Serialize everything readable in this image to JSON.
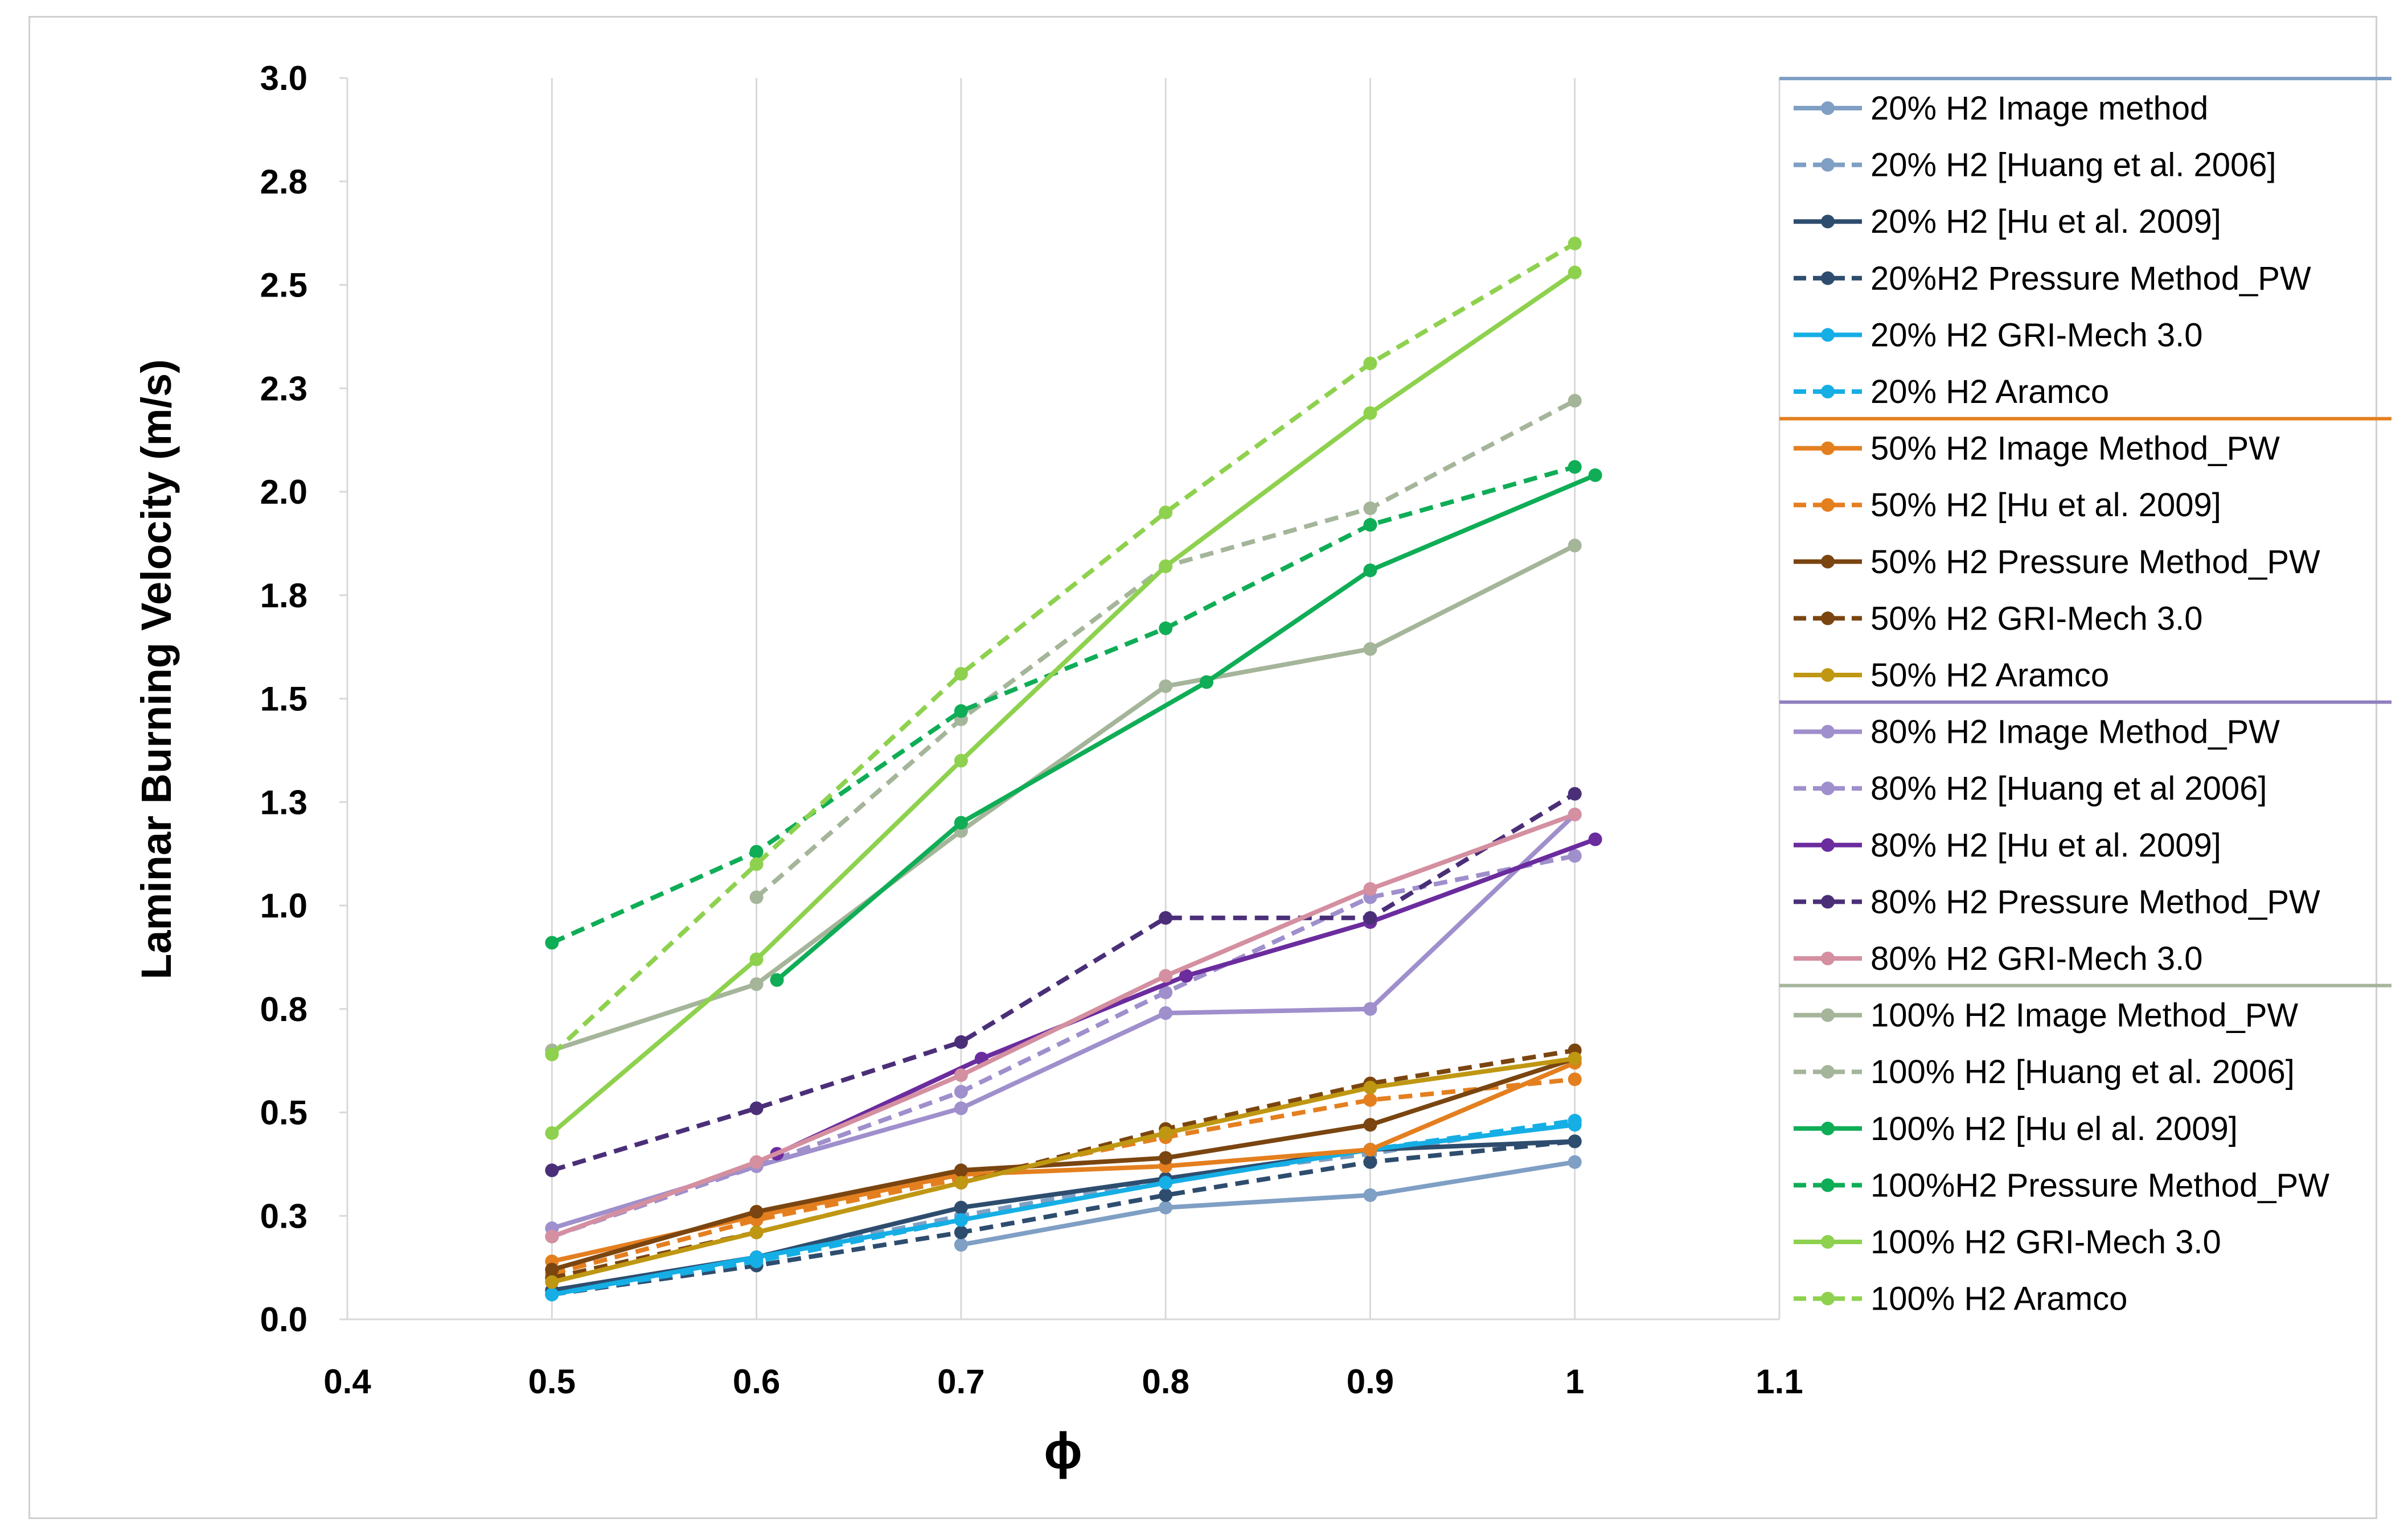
{
  "chart_data": {
    "type": "line",
    "title": "",
    "xlabel": "ϕ",
    "ylabel": "Laminar Burning Velocity (m/s)",
    "xlim": [
      0.4,
      1.1
    ],
    "ylim": [
      0.0,
      3.0
    ],
    "x_tick_labels": [
      "0.4",
      "0.5",
      "0.6",
      "0.7",
      "0.8",
      "0.9",
      "1",
      "1.1"
    ],
    "x_tick_values": [
      0.4,
      0.5,
      0.6,
      0.7,
      0.8,
      0.9,
      1.0,
      1.1
    ],
    "y_tick_labels": [
      "0.0",
      "0.3",
      "0.5",
      "0.8",
      "1.0",
      "1.3",
      "1.5",
      "1.8",
      "2.0",
      "2.3",
      "2.5",
      "2.8",
      "3.0"
    ],
    "y_tick_values": [
      0.0,
      0.25,
      0.5,
      0.75,
      1.0,
      1.25,
      1.5,
      1.75,
      2.0,
      2.25,
      2.5,
      2.75,
      3.0
    ],
    "grid": "vertical",
    "legend_position": "right",
    "legend_groups": [
      {
        "color": "#7f9fc4",
        "start": 0
      },
      {
        "color": "#e47f1f",
        "start": 6
      },
      {
        "color": "#8f7fbf",
        "start": 11
      },
      {
        "color": "#a5b59a",
        "start": 16
      }
    ],
    "series": [
      {
        "name": "20% H2 Image method",
        "color": "#7f9fc4",
        "dashed": false,
        "x": [
          0.7,
          0.8,
          0.9,
          1.0
        ],
        "values": [
          0.18,
          0.27,
          0.3,
          0.38
        ]
      },
      {
        "name": "20% H2 [Huang et al. 2006]",
        "color": "#7f9fc4",
        "dashed": true,
        "x": [
          0.5,
          0.6,
          0.7,
          0.8,
          0.9,
          1.0
        ],
        "values": [
          0.06,
          0.15,
          0.25,
          0.34,
          0.4,
          0.48
        ]
      },
      {
        "name": "20% H2 [Hu et al. 2009]",
        "color": "#2e4d6e",
        "dashed": false,
        "x": [
          0.5,
          0.6,
          0.7,
          0.8,
          0.9,
          1.0
        ],
        "values": [
          0.07,
          0.15,
          0.27,
          0.34,
          0.41,
          0.43
        ]
      },
      {
        "name": "20%H2 Pressure Method_PW",
        "color": "#2e4d6e",
        "dashed": true,
        "x": [
          0.5,
          0.6,
          0.7,
          0.8,
          0.9,
          1.0
        ],
        "values": [
          0.06,
          0.13,
          0.21,
          0.3,
          0.38,
          0.43
        ]
      },
      {
        "name": "20% H2 GRI-Mech 3.0",
        "color": "#15aee5",
        "dashed": false,
        "x": [
          0.5,
          0.6,
          0.7,
          0.8,
          0.9,
          1.0
        ],
        "values": [
          0.06,
          0.15,
          0.24,
          0.33,
          0.41,
          0.47
        ]
      },
      {
        "name": "20% H2 Aramco",
        "color": "#15aee5",
        "dashed": true,
        "x": [
          0.5,
          0.6,
          0.7,
          0.8,
          0.9,
          1.0
        ],
        "values": [
          0.06,
          0.14,
          0.24,
          0.33,
          0.41,
          0.48
        ]
      },
      {
        "name": "50% H2 Image Method_PW",
        "color": "#e47f1f",
        "dashed": false,
        "x": [
          0.5,
          0.6,
          0.7,
          0.8,
          0.9,
          1.0
        ],
        "values": [
          0.14,
          0.25,
          0.35,
          0.37,
          0.41,
          0.62
        ]
      },
      {
        "name": "50% H2 [Hu et al. 2009]",
        "color": "#e47f1f",
        "dashed": true,
        "x": [
          0.5,
          0.6,
          0.7,
          0.8,
          0.9,
          1.0
        ],
        "values": [
          0.11,
          0.24,
          0.34,
          0.44,
          0.53,
          0.58
        ]
      },
      {
        "name": "50% H2 Pressure Method_PW",
        "color": "#7a4510",
        "dashed": false,
        "x": [
          0.5,
          0.6,
          0.7,
          0.8,
          0.9,
          1.0
        ],
        "values": [
          0.12,
          0.26,
          0.36,
          0.39,
          0.47,
          0.63
        ]
      },
      {
        "name": "50% H2 GRI-Mech 3.0",
        "color": "#7a4510",
        "dashed": true,
        "x": [
          0.5,
          0.6,
          0.7,
          0.8,
          0.9,
          1.0
        ],
        "values": [
          0.1,
          0.21,
          0.33,
          0.46,
          0.57,
          0.65
        ]
      },
      {
        "name": "50% H2 Aramco",
        "color": "#bf9712",
        "dashed": false,
        "x": [
          0.5,
          0.6,
          0.7,
          0.8,
          0.9,
          1.0
        ],
        "values": [
          0.09,
          0.21,
          0.33,
          0.45,
          0.56,
          0.63
        ]
      },
      {
        "name": "80% H2 Image Method_PW",
        "color": "#9f8fcc",
        "dashed": false,
        "x": [
          0.5,
          0.6,
          0.7,
          0.8,
          0.9,
          1.0
        ],
        "values": [
          0.22,
          0.37,
          0.51,
          0.74,
          0.75,
          1.22
        ]
      },
      {
        "name": "80% H2 [Huang et al 2006]",
        "color": "#9f8fcc",
        "dashed": true,
        "x": [
          0.5,
          0.6,
          0.7,
          0.8,
          0.9,
          1.0
        ],
        "values": [
          0.2,
          0.37,
          0.55,
          0.79,
          1.02,
          1.12
        ]
      },
      {
        "name": "80% H2 [Hu et al. 2009]",
        "color": "#6b2c9e",
        "dashed": false,
        "x": [
          0.61,
          0.71,
          0.81,
          0.9,
          1.01
        ],
        "values": [
          0.4,
          0.63,
          0.83,
          0.96,
          1.16
        ]
      },
      {
        "name": "80% H2 Pressure Method_PW",
        "color": "#4a2f78",
        "dashed": true,
        "x": [
          0.5,
          0.6,
          0.7,
          0.8,
          0.9,
          1.0
        ],
        "values": [
          0.36,
          0.51,
          0.67,
          0.97,
          0.97,
          1.27
        ]
      },
      {
        "name": "80% H2 GRI-Mech 3.0",
        "color": "#d48fa0",
        "dashed": false,
        "x": [
          0.5,
          0.6,
          0.7,
          0.8,
          0.9,
          1.0
        ],
        "values": [
          0.2,
          0.38,
          0.59,
          0.83,
          1.04,
          1.22
        ]
      },
      {
        "name": "100% H2 Image Method_PW",
        "color": "#a5b59a",
        "dashed": false,
        "x": [
          0.5,
          0.6,
          0.7,
          0.8,
          0.9,
          1.0
        ],
        "values": [
          0.65,
          0.81,
          1.18,
          1.53,
          1.62,
          1.87
        ]
      },
      {
        "name": "100% H2 [Huang et al. 2006]",
        "color": "#a5b59a",
        "dashed": true,
        "x": [
          0.6,
          0.7,
          0.8,
          0.9,
          1.0
        ],
        "values": [
          1.02,
          1.45,
          1.82,
          1.96,
          2.22
        ]
      },
      {
        "name": "100% H2 [Hu el al. 2009]",
        "color": "#0fad56",
        "dashed": false,
        "x": [
          0.61,
          0.7,
          0.82,
          0.9,
          1.01
        ],
        "values": [
          0.82,
          1.2,
          1.54,
          1.81,
          2.04
        ]
      },
      {
        "name": "100%H2 Pressure Method_PW",
        "color": "#0fad56",
        "dashed": true,
        "x": [
          0.5,
          0.6,
          0.7,
          0.8,
          0.9,
          1.0
        ],
        "values": [
          0.91,
          1.13,
          1.47,
          1.67,
          1.92,
          2.06
        ]
      },
      {
        "name": "100% H2 GRI-Mech 3.0",
        "color": "#8ed14e",
        "dashed": false,
        "x": [
          0.5,
          0.6,
          0.7,
          0.8,
          0.9,
          1.0
        ],
        "values": [
          0.45,
          0.87,
          1.35,
          1.82,
          2.19,
          2.53
        ]
      },
      {
        "name": "100% H2 Aramco",
        "color": "#8ed14e",
        "dashed": true,
        "x": [
          0.5,
          0.6,
          0.7,
          0.8,
          0.9,
          1.0
        ],
        "values": [
          0.64,
          1.1,
          1.56,
          1.95,
          2.31,
          2.6
        ]
      }
    ]
  }
}
